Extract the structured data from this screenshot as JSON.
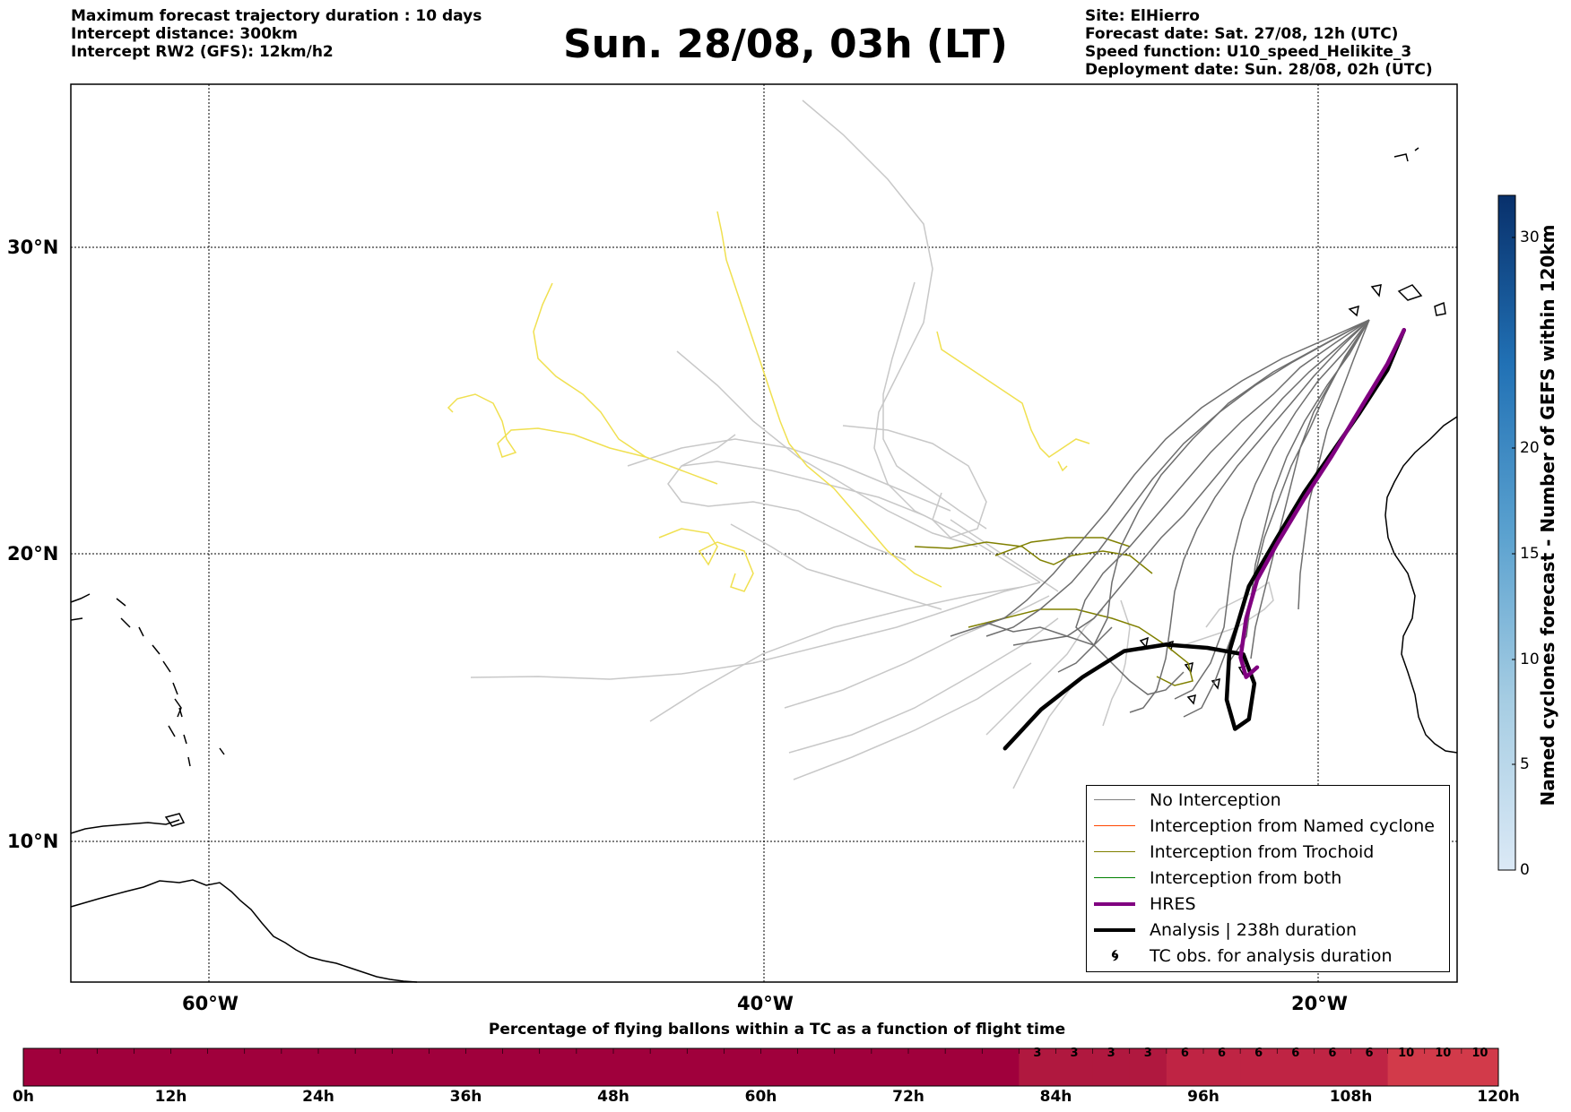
{
  "header_left": {
    "line1": "Maximum forecast trajectory duration : 10 days",
    "line2": "Intercept distance: 300km",
    "line3": "Intercept RW2 (GFS):  12km/h2"
  },
  "title": "Sun. 28/08, 03h (LT)",
  "header_right": {
    "site": "Site: ElHierro",
    "forecast_date": "Forecast date: Sat. 27/08, 12h (UTC)",
    "speed_function": "Speed function: U10_speed_Helikite_3",
    "deployment_date": "Deployment date: Sun. 28/08, 02h (UTC)"
  },
  "map": {
    "lat_labels": [
      "30°N",
      "20°N",
      "10°N"
    ],
    "lon_labels": [
      "60°W",
      "40°W",
      "20°W"
    ],
    "lat_grid": [
      30,
      20,
      10
    ],
    "lon_grid": [
      -60,
      -40,
      -20
    ]
  },
  "legend": {
    "no_interception": "No Interception",
    "named_cyclone": "Interception from Named cyclone",
    "trochoid": "Interception from Trochoid",
    "both": "Interception from both",
    "hres": "HRES",
    "analysis": "Analysis | 238h duration",
    "tc_obs": "TC obs. for analysis duration",
    "colors": {
      "no_interception": "#808080",
      "named_cyclone": "#ff4500",
      "trochoid": "#808000",
      "both": "#008000",
      "hres": "#800080",
      "analysis": "#000000"
    }
  },
  "colorbar_right": {
    "title": "Named cyclones forecast - Number of GEFS within 120km",
    "ticks": [
      "0",
      "5",
      "10",
      "15",
      "20",
      "30"
    ],
    "min": 0,
    "max": 32
  },
  "bottom_bar": {
    "title": "Percentage of flying ballons within a TC as a function of flight time",
    "tick_labels": [
      "0h",
      "12h",
      "24h",
      "36h",
      "48h",
      "60h",
      "72h",
      "84h",
      "96h",
      "108h",
      "120h"
    ],
    "cell_values": [
      0,
      0,
      0,
      0,
      0,
      0,
      0,
      0,
      0,
      0,
      0,
      0,
      0,
      0,
      0,
      0,
      0,
      0,
      0,
      0,
      0,
      0,
      0,
      0,
      0,
      0,
      0,
      3,
      3,
      3,
      3,
      6,
      6,
      6,
      6,
      6,
      6,
      10,
      10,
      10
    ],
    "cell_labels": [
      "",
      "",
      "",
      "",
      "",
      "",
      "",
      "",
      "",
      "",
      "",
      "",
      "",
      "",
      "",
      "",
      "",
      "",
      "",
      "",
      "",
      "",
      "",
      "",
      "",
      "",
      "",
      "3",
      "3",
      "3",
      "3",
      "6",
      "6",
      "6",
      "6",
      "6",
      "6",
      "10",
      "10",
      "10"
    ]
  },
  "chart_data": {
    "type": "map",
    "lat_range": [
      5,
      35
    ],
    "lon_range": [
      -65,
      -15
    ],
    "analysis_track": [
      [
        -31.3,
        14.0
      ],
      [
        -30.0,
        15.2
      ],
      [
        -28.5,
        16.2
      ],
      [
        -27.0,
        17.0
      ],
      [
        -25.5,
        17.2
      ],
      [
        -24.0,
        17.1
      ],
      [
        -22.7,
        16.9
      ],
      [
        -22.3,
        16.0
      ],
      [
        -22.5,
        14.9
      ],
      [
        -23.0,
        14.6
      ],
      [
        -23.3,
        15.5
      ],
      [
        -23.2,
        17.0
      ],
      [
        -22.5,
        19.0
      ],
      [
        -21.5,
        20.5
      ],
      [
        -20.5,
        22.0
      ],
      [
        -19.5,
        23.3
      ],
      [
        -18.5,
        24.6
      ],
      [
        -17.5,
        26.0
      ],
      [
        -16.9,
        27.3
      ]
    ],
    "hres_track": [
      [
        -16.9,
        27.3
      ],
      [
        -17.5,
        26.2
      ],
      [
        -18.5,
        24.7
      ],
      [
        -19.5,
        23.2
      ],
      [
        -20.5,
        21.8
      ],
      [
        -21.5,
        20.3
      ],
      [
        -22.2,
        19.2
      ],
      [
        -22.6,
        18.0
      ],
      [
        -22.8,
        16.8
      ],
      [
        -22.6,
        16.2
      ],
      [
        -22.2,
        16.5
      ]
    ]
  }
}
